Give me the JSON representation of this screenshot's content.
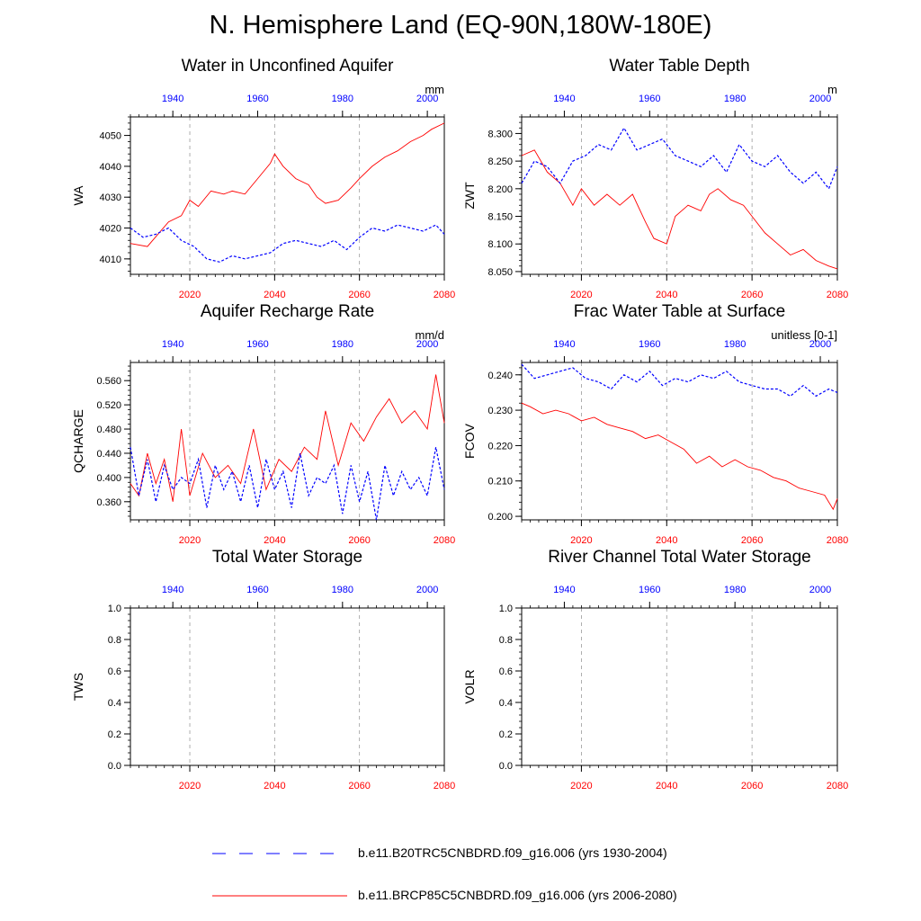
{
  "title": "N. Hemisphere Land (EQ-90N,180W-180E)",
  "colors": {
    "future": "#ff0000",
    "historical": "#0000ff",
    "grid": "#9a9a9a"
  },
  "legend": [
    {
      "label": "b.e11.B20TRC5CNBDRD.f09_g16.006 (yrs 1930-2004)",
      "style": "dashed",
      "color": "#0000ff"
    },
    {
      "label": "b.e11.BRCP85C5CNBDRD.f09_g16.006 (yrs 2006-2080)",
      "style": "solid",
      "color": "#ff0000"
    }
  ],
  "chart_data": [
    {
      "type": "line",
      "title": "Water in Unconfined Aquifer",
      "ylabel": "WA",
      "units": "mm",
      "ylim": [
        4005,
        4056
      ],
      "yticks": [
        4010,
        4020,
        4030,
        4040,
        4050
      ],
      "yticklabels": [
        "4010",
        "4020",
        "4030",
        "4040",
        "4050"
      ],
      "xlim_future": [
        2006,
        2080
      ],
      "xticks_future": [
        2020,
        2040,
        2060,
        2080
      ],
      "xticks_hist": [
        1940,
        1960,
        1980,
        2000
      ],
      "grid_years": [
        2020,
        2040,
        2060
      ],
      "series": [
        {
          "name": "b.e11.BRCP85C5CNBDRD.f09_g16.006 (yrs 2006-2080)",
          "years": [
            2006,
            2010,
            2015,
            2018,
            2020,
            2022,
            2025,
            2028,
            2030,
            2033,
            2036,
            2039,
            2040,
            2042,
            2045,
            2048,
            2050,
            2052,
            2055,
            2058,
            2060,
            2063,
            2066,
            2069,
            2072,
            2075,
            2077,
            2080
          ],
          "values": [
            4015,
            4014,
            4022,
            4024,
            4029,
            4027,
            4032,
            4031,
            4032,
            4031,
            4036,
            4041,
            4044,
            4040,
            4036,
            4034,
            4030,
            4028,
            4029,
            4033,
            4036,
            4040,
            4043,
            4045,
            4048,
            4050,
            4052,
            4054
          ]
        },
        {
          "name": "b.e11.B20TRC5CNBDRD.f09_g16.006 (yrs 1930-2004)",
          "years": [
            1930,
            1933,
            1936,
            1939,
            1942,
            1945,
            1948,
            1951,
            1954,
            1957,
            1960,
            1963,
            1966,
            1969,
            1972,
            1975,
            1978,
            1981,
            1984,
            1987,
            1990,
            1993,
            1996,
            1999,
            2002,
            2004
          ],
          "values": [
            4020,
            4017,
            4018,
            4020,
            4016,
            4014,
            4010,
            4009,
            4011,
            4010,
            4011,
            4012,
            4015,
            4016,
            4015,
            4014,
            4016,
            4013,
            4017,
            4020,
            4019,
            4021,
            4020,
            4019,
            4021,
            4018
          ]
        }
      ]
    },
    {
      "type": "line",
      "title": "Water Table Depth",
      "ylabel": "ZWT",
      "units": "m",
      "ylim": [
        8.045,
        8.33
      ],
      "yticks": [
        8.05,
        8.1,
        8.15,
        8.2,
        8.25,
        8.3
      ],
      "yticklabels": [
        "8.050",
        "8.100",
        "8.150",
        "8.200",
        "8.250",
        "8.300"
      ],
      "xlim_future": [
        2006,
        2080
      ],
      "xticks_future": [
        2020,
        2040,
        2060,
        2080
      ],
      "xticks_hist": [
        1940,
        1960,
        1980,
        2000
      ],
      "grid_years": [
        2020,
        2040,
        2060
      ],
      "series": [
        {
          "name": "b.e11.BRCP85C5CNBDRD.f09_g16.006 (yrs 2006-2080)",
          "years": [
            2006,
            2009,
            2012,
            2015,
            2018,
            2020,
            2023,
            2026,
            2029,
            2032,
            2035,
            2037,
            2040,
            2042,
            2045,
            2048,
            2050,
            2052,
            2055,
            2058,
            2060,
            2063,
            2066,
            2069,
            2072,
            2075,
            2078,
            2080
          ],
          "values": [
            8.26,
            8.27,
            8.23,
            8.21,
            8.17,
            8.2,
            8.17,
            8.19,
            8.17,
            8.19,
            8.14,
            8.11,
            8.1,
            8.15,
            8.17,
            8.16,
            8.19,
            8.2,
            8.18,
            8.17,
            8.15,
            8.12,
            8.1,
            8.08,
            8.09,
            8.07,
            8.06,
            8.055
          ]
        },
        {
          "name": "b.e11.B20TRC5CNBDRD.f09_g16.006 (yrs 1930-2004)",
          "years": [
            1930,
            1933,
            1936,
            1939,
            1942,
            1945,
            1948,
            1951,
            1954,
            1957,
            1960,
            1963,
            1966,
            1969,
            1972,
            1975,
            1978,
            1981,
            1984,
            1987,
            1990,
            1993,
            1996,
            1999,
            2002,
            2004
          ],
          "values": [
            8.21,
            8.25,
            8.24,
            8.21,
            8.25,
            8.26,
            8.28,
            8.27,
            8.31,
            8.27,
            8.28,
            8.29,
            8.26,
            8.25,
            8.24,
            8.26,
            8.23,
            8.28,
            8.25,
            8.24,
            8.26,
            8.23,
            8.21,
            8.23,
            8.2,
            8.24
          ]
        }
      ]
    },
    {
      "type": "line",
      "title": "Aquifer Recharge Rate",
      "ylabel": "QCHARGE",
      "units": "mm/d",
      "ylim": [
        0.33,
        0.59
      ],
      "yticks": [
        0.36,
        0.4,
        0.44,
        0.48,
        0.52,
        0.56
      ],
      "yticklabels": [
        "0.360",
        "0.400",
        "0.440",
        "0.480",
        "0.520",
        "0.560"
      ],
      "xlim_future": [
        2006,
        2080
      ],
      "xticks_future": [
        2020,
        2040,
        2060,
        2080
      ],
      "xticks_hist": [
        1940,
        1960,
        1980,
        2000
      ],
      "grid_years": [
        2020,
        2040,
        2060
      ],
      "series": [
        {
          "name": "b.e11.BRCP85C5CNBDRD.f09_g16.006 (yrs 2006-2080)",
          "years": [
            2006,
            2008,
            2010,
            2012,
            2014,
            2016,
            2018,
            2020,
            2023,
            2026,
            2029,
            2032,
            2035,
            2038,
            2041,
            2044,
            2047,
            2050,
            2052,
            2055,
            2058,
            2061,
            2064,
            2067,
            2070,
            2073,
            2076,
            2078,
            2080
          ],
          "values": [
            0.39,
            0.37,
            0.44,
            0.39,
            0.43,
            0.36,
            0.48,
            0.37,
            0.44,
            0.4,
            0.42,
            0.39,
            0.48,
            0.38,
            0.43,
            0.41,
            0.45,
            0.43,
            0.51,
            0.42,
            0.49,
            0.46,
            0.5,
            0.53,
            0.49,
            0.51,
            0.48,
            0.57,
            0.49
          ]
        },
        {
          "name": "b.e11.B20TRC5CNBDRD.f09_g16.006 (yrs 1930-2004)",
          "years": [
            1930,
            1932,
            1934,
            1936,
            1938,
            1940,
            1942,
            1944,
            1946,
            1948,
            1950,
            1952,
            1954,
            1956,
            1958,
            1960,
            1962,
            1964,
            1966,
            1968,
            1970,
            1972,
            1974,
            1976,
            1978,
            1980,
            1982,
            1984,
            1986,
            1988,
            1990,
            1992,
            1994,
            1996,
            1998,
            2000,
            2002,
            2004
          ],
          "values": [
            0.45,
            0.37,
            0.43,
            0.36,
            0.42,
            0.38,
            0.4,
            0.39,
            0.43,
            0.35,
            0.42,
            0.38,
            0.41,
            0.36,
            0.42,
            0.35,
            0.43,
            0.38,
            0.41,
            0.35,
            0.44,
            0.37,
            0.4,
            0.39,
            0.42,
            0.34,
            0.42,
            0.36,
            0.41,
            0.33,
            0.42,
            0.37,
            0.41,
            0.38,
            0.4,
            0.37,
            0.45,
            0.38
          ]
        }
      ]
    },
    {
      "type": "line",
      "title": "Frac Water Table at Surface",
      "ylabel": "FCOV",
      "units": "unitless [0-1]",
      "ylim": [
        0.199,
        0.2435
      ],
      "yticks": [
        0.2,
        0.21,
        0.22,
        0.23,
        0.24
      ],
      "yticklabels": [
        "0.200",
        "0.210",
        "0.220",
        "0.230",
        "0.240"
      ],
      "xlim_future": [
        2006,
        2080
      ],
      "xticks_future": [
        2020,
        2040,
        2060,
        2080
      ],
      "xticks_hist": [
        1940,
        1960,
        1980,
        2000
      ],
      "grid_years": [
        2020,
        2040,
        2060
      ],
      "series": [
        {
          "name": "b.e11.BRCP85C5CNBDRD.f09_g16.006 (yrs 2006-2080)",
          "years": [
            2006,
            2008,
            2011,
            2014,
            2017,
            2020,
            2023,
            2026,
            2029,
            2032,
            2035,
            2038,
            2041,
            2044,
            2047,
            2050,
            2053,
            2056,
            2059,
            2062,
            2065,
            2068,
            2071,
            2074,
            2077,
            2079,
            2080
          ],
          "values": [
            0.232,
            0.231,
            0.229,
            0.23,
            0.229,
            0.227,
            0.228,
            0.226,
            0.225,
            0.224,
            0.222,
            0.223,
            0.221,
            0.219,
            0.215,
            0.217,
            0.214,
            0.216,
            0.214,
            0.213,
            0.211,
            0.21,
            0.208,
            0.207,
            0.206,
            0.202,
            0.205
          ]
        },
        {
          "name": "b.e11.B20TRC5CNBDRD.f09_g16.006 (yrs 1930-2004)",
          "years": [
            1930,
            1933,
            1936,
            1939,
            1942,
            1945,
            1948,
            1951,
            1954,
            1957,
            1960,
            1963,
            1966,
            1969,
            1972,
            1975,
            1978,
            1981,
            1984,
            1987,
            1990,
            1993,
            1996,
            1999,
            2002,
            2004
          ],
          "values": [
            0.243,
            0.239,
            0.24,
            0.241,
            0.242,
            0.239,
            0.238,
            0.236,
            0.24,
            0.238,
            0.241,
            0.237,
            0.239,
            0.238,
            0.24,
            0.239,
            0.241,
            0.238,
            0.237,
            0.236,
            0.236,
            0.234,
            0.237,
            0.234,
            0.236,
            0.235
          ]
        }
      ]
    },
    {
      "type": "line",
      "title": "Total Water Storage",
      "ylabel": "TWS",
      "units": "",
      "ylim": [
        0,
        1
      ],
      "yticks": [
        0,
        0.2,
        0.4,
        0.6,
        0.8,
        1.0
      ],
      "yticklabels": [
        "0.0",
        "0.2",
        "0.4",
        "0.6",
        "0.8",
        "1.0"
      ],
      "xlim_future": [
        2006,
        2080
      ],
      "xticks_future": [
        2020,
        2040,
        2060,
        2080
      ],
      "xticks_hist": [
        1940,
        1960,
        1980,
        2000
      ],
      "grid_years": [
        2020,
        2040,
        2060
      ],
      "series": []
    },
    {
      "type": "line",
      "title": "River Channel Total Water Storage",
      "ylabel": "VOLR",
      "units": "",
      "ylim": [
        0,
        1
      ],
      "yticks": [
        0,
        0.2,
        0.4,
        0.6,
        0.8,
        1.0
      ],
      "yticklabels": [
        "0.0",
        "0.2",
        "0.4",
        "0.6",
        "0.8",
        "1.0"
      ],
      "xlim_future": [
        2006,
        2080
      ],
      "xticks_future": [
        2020,
        2040,
        2060,
        2080
      ],
      "xticks_hist": [
        1940,
        1960,
        1980,
        2000
      ],
      "grid_years": [
        2020,
        2040,
        2060
      ],
      "series": []
    }
  ]
}
